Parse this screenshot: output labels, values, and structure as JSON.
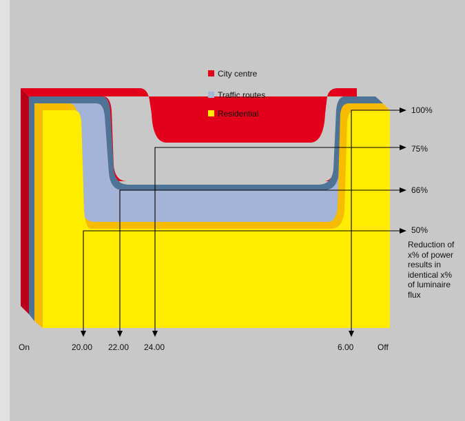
{
  "chart_data": {
    "type": "area",
    "title": "",
    "series": [
      {
        "name": "City centre",
        "color": "#e2001a",
        "values": [
          100,
          100,
          75,
          75,
          100,
          100
        ]
      },
      {
        "name": "Traffic routes",
        "color": "#a3b4d6",
        "values": [
          100,
          100,
          66,
          66,
          100,
          100
        ]
      },
      {
        "name": "Residential",
        "color": "#ffec00",
        "values": [
          100,
          50,
          50,
          50,
          100,
          100
        ]
      }
    ],
    "x_labels": [
      "On",
      "20.00",
      "22.00",
      "24.00",
      "6.00",
      "Off"
    ],
    "levels": [
      100,
      75,
      66,
      50
    ],
    "level_labels": [
      "100%",
      "75%",
      "66%",
      "50%"
    ],
    "note": "Reduction of x% of power results in identical x% of luminaire flux",
    "colors": {
      "city_centre_side": "#b8001a",
      "traffic_routes_side": "#4e7394",
      "residential_side": "#f7bc00",
      "background": "#c8c8c8"
    }
  }
}
